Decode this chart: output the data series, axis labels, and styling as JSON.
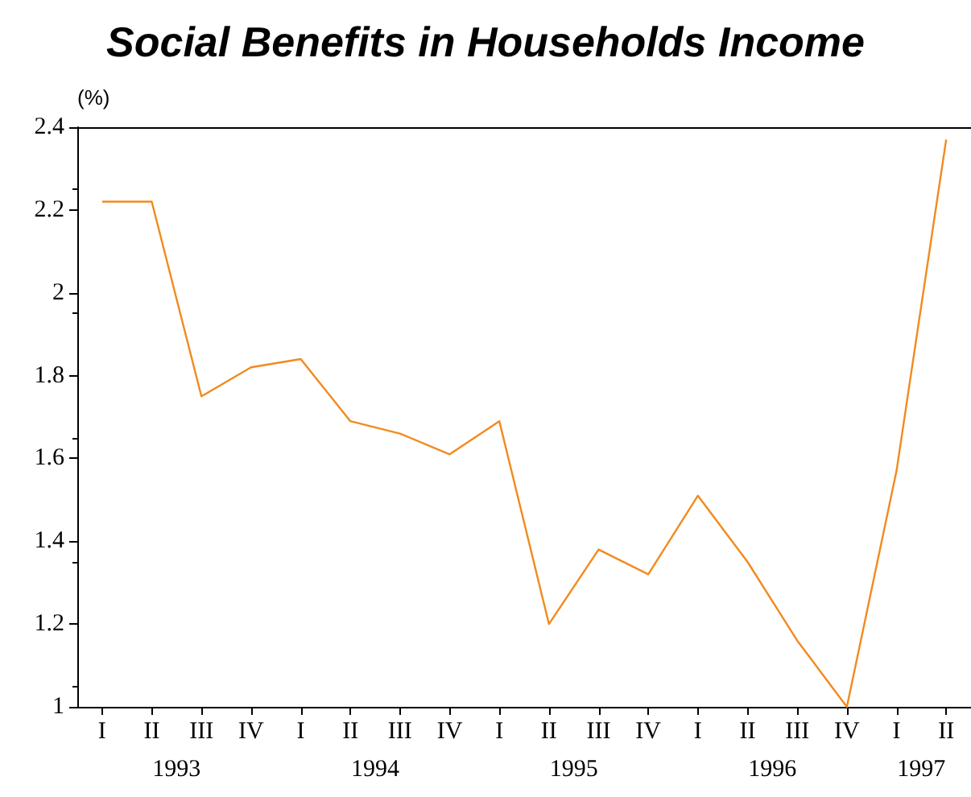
{
  "chart_data": {
    "type": "line",
    "title": "Social Benefits in Households Income",
    "ylabel": "(%)",
    "categories": [
      "I",
      "II",
      "III",
      "IV",
      "I",
      "II",
      "III",
      "IV",
      "I",
      "II",
      "III",
      "IV",
      "I",
      "II",
      "III",
      "IV",
      "I",
      "II"
    ],
    "annotations": [
      "1993",
      "1994",
      "1995",
      "1996",
      "1997"
    ],
    "series": [
      {
        "color": "#f28a1e",
        "values": [
          2.22,
          2.22,
          1.75,
          1.82,
          1.84,
          1.69,
          1.66,
          1.61,
          1.69,
          1.2,
          1.38,
          1.32,
          1.51,
          1.35,
          1.16,
          1.0,
          1.57,
          2.37
        ]
      }
    ],
    "ylim": [
      1,
      2.4
    ],
    "yticks": [
      1,
      1.2,
      1.4,
      1.6,
      1.8,
      2,
      2.2,
      2.4
    ],
    "grid": false,
    "marker": "none",
    "line_style": "solid"
  }
}
